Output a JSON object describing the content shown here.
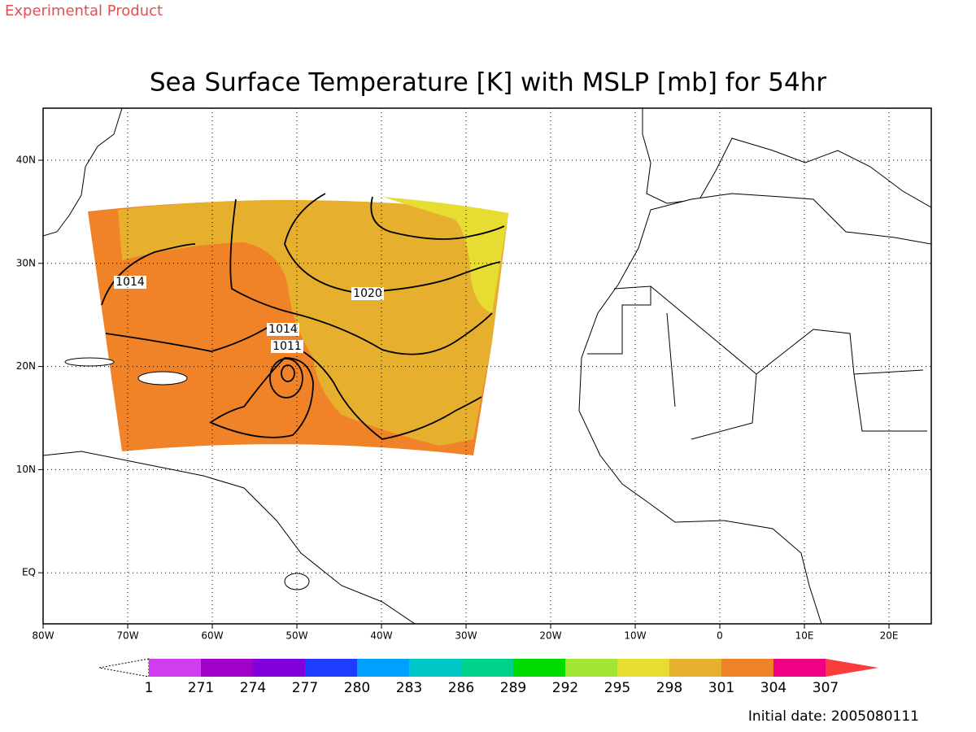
{
  "header": "Experimental Product",
  "title": "Sea Surface Temperature [K] with MSLP [mb] for 54hr",
  "lon_labels": [
    "80W",
    "70W",
    "60W",
    "50W",
    "40W",
    "30W",
    "20W",
    "10W",
    "0",
    "10E",
    "20E"
  ],
  "lat_labels": [
    "40N",
    "30N",
    "20N",
    "10N",
    "EQ"
  ],
  "contour_labels": [
    "1014",
    "1020",
    "1014",
    "1011"
  ],
  "colorbar": {
    "labels": [
      "1",
      "271",
      "274",
      "277",
      "280",
      "283",
      "286",
      "289",
      "292",
      "295",
      "298",
      "301",
      "304",
      "307"
    ],
    "colors": [
      "#ffffff",
      "#d23cf0",
      "#a000c8",
      "#8200dc",
      "#1e3cff",
      "#00a0ff",
      "#00c8c8",
      "#00d28c",
      "#00dc00",
      "#a0e632",
      "#e6dc32",
      "#e6af2d",
      "#f08228",
      "#f00082",
      "#fa3c3c"
    ]
  },
  "footer": "Initial date: 2005080111"
}
